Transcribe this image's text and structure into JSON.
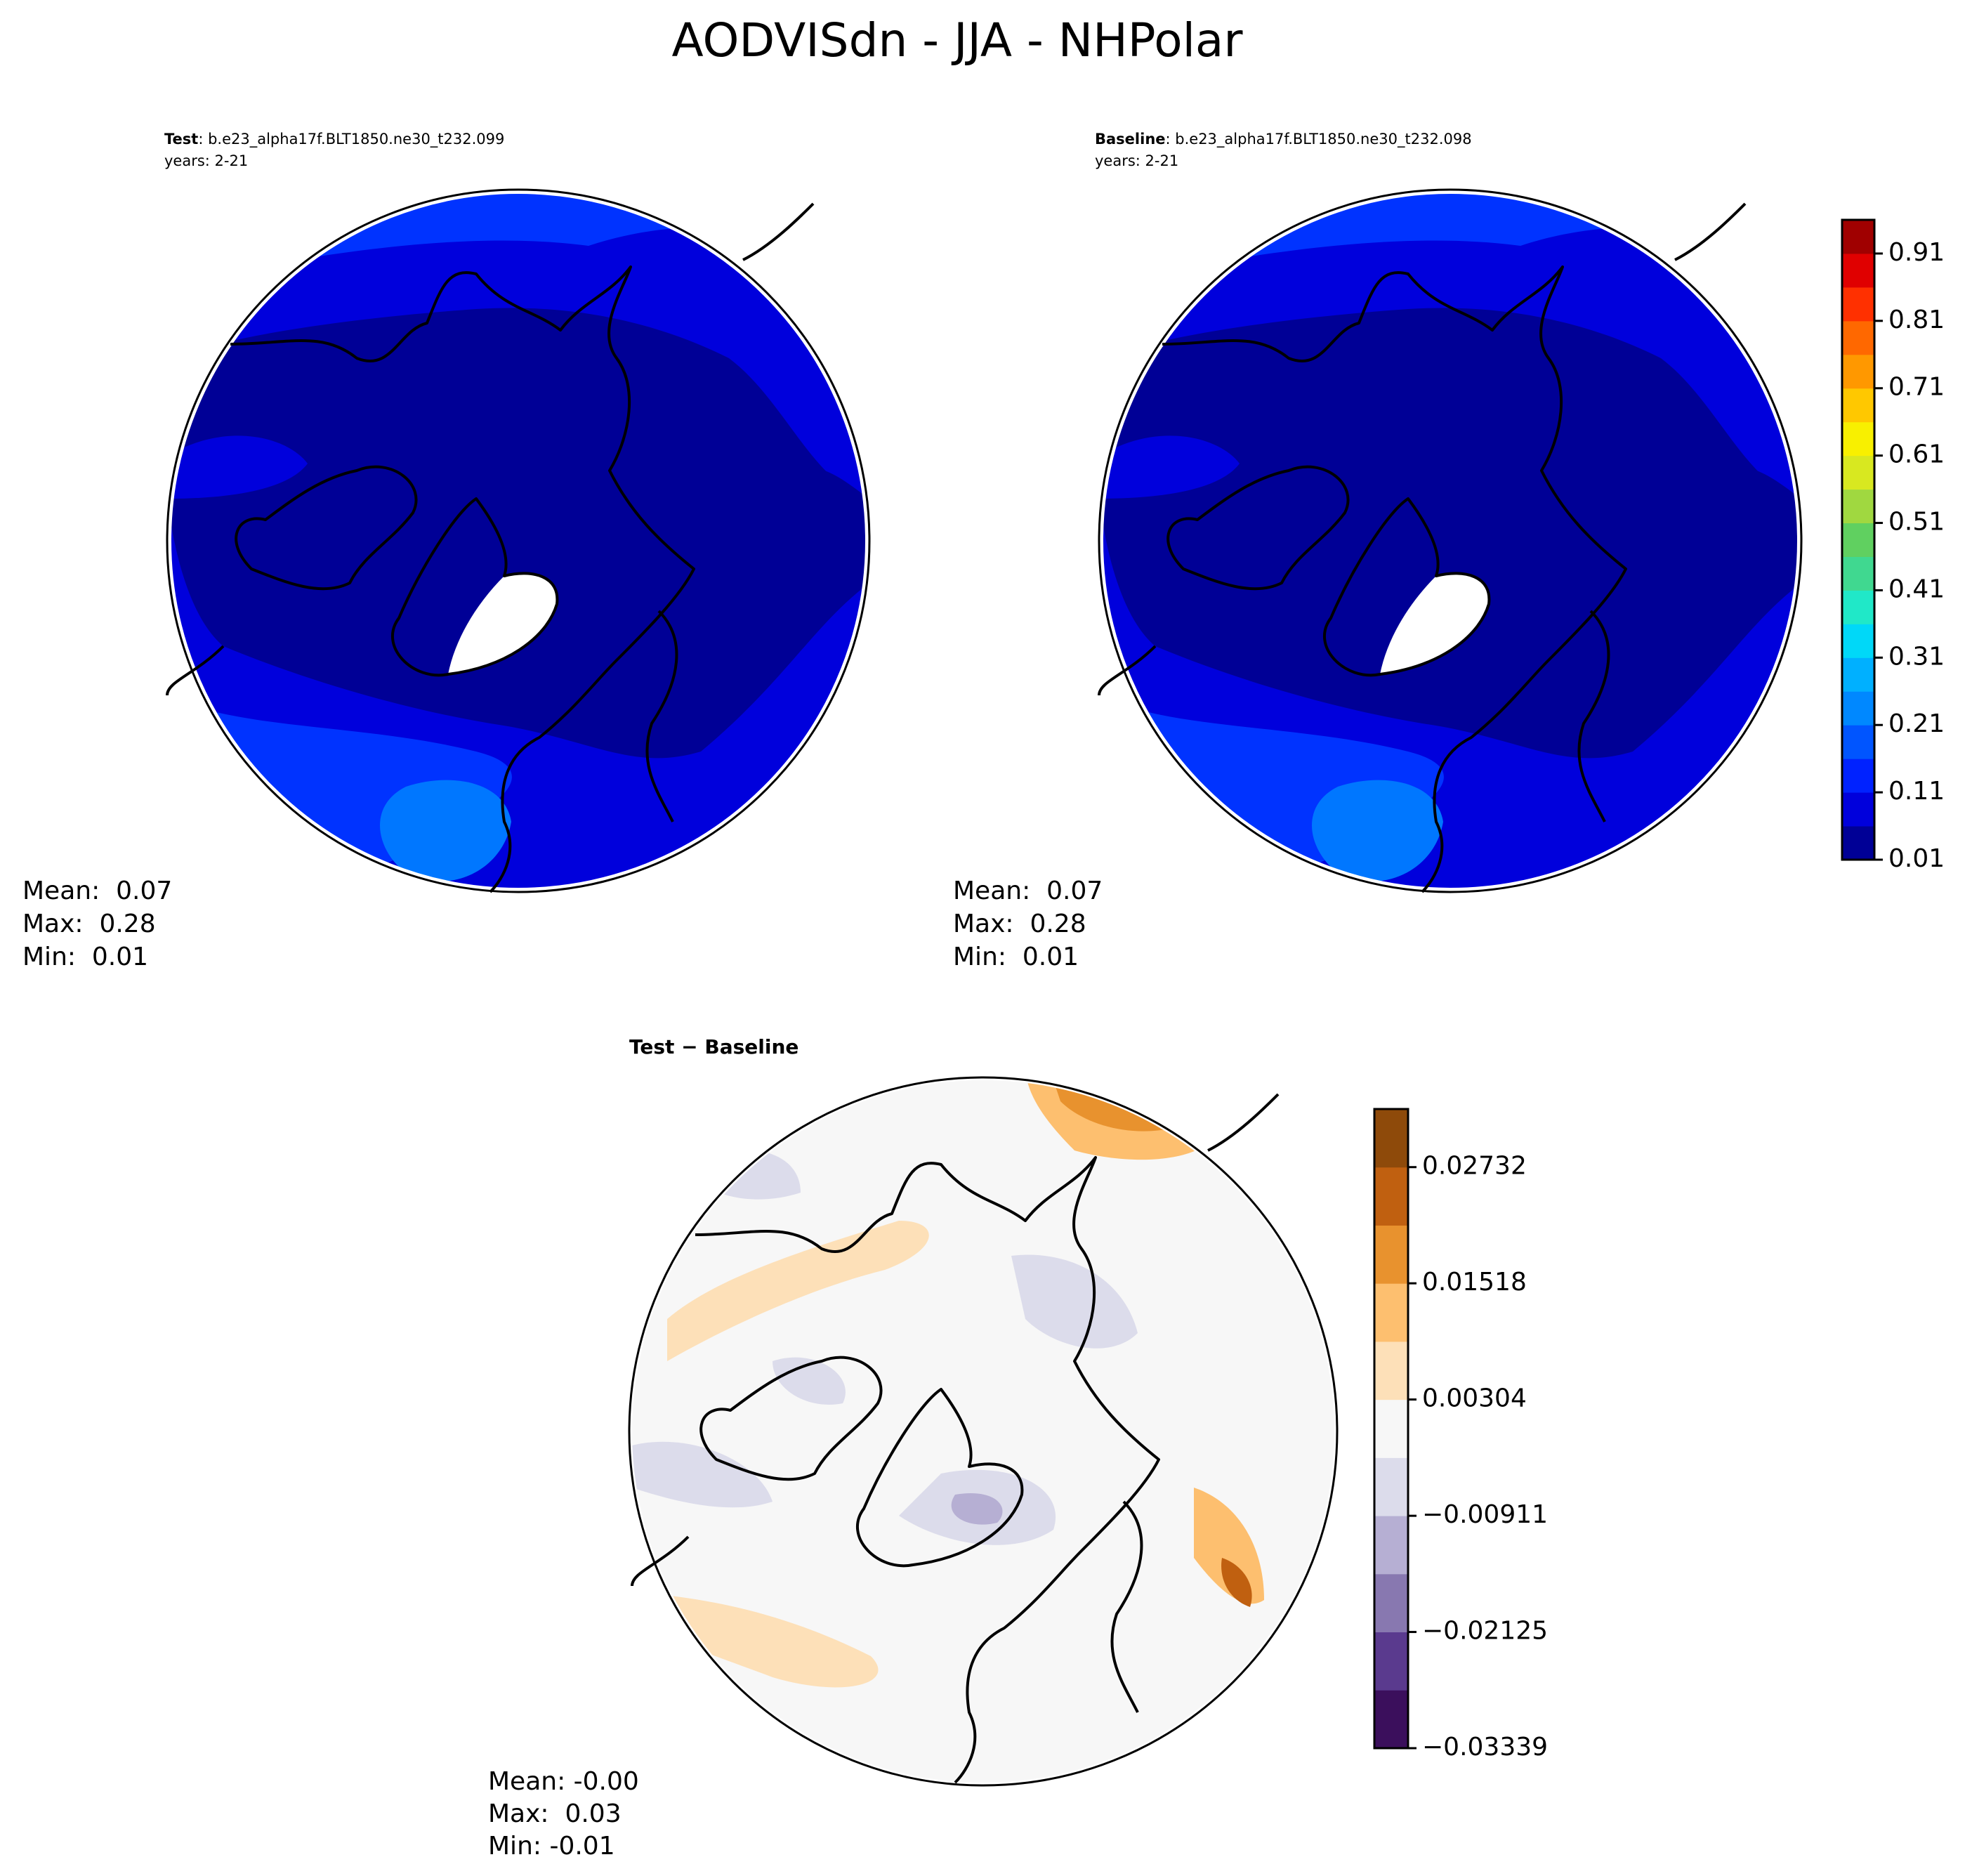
{
  "title": "AODVISdn - JJA - NHPolar",
  "panels": [
    {
      "label": "Test",
      "case": ": b.e23_alpha17f.BLT1850.ne30_t232.099",
      "years": "years: 2-21",
      "stats": [
        "Mean:  0.07",
        "Max:  0.28",
        "Min:  0.01"
      ]
    },
    {
      "label": "Baseline",
      "case": ": b.e23_alpha17f.BLT1850.ne30_t232.098",
      "years": "years: 2-21",
      "stats": [
        "Mean:  0.07",
        "Max:  0.28",
        "Min:  0.01"
      ]
    },
    {
      "label": "Test − Baseline",
      "stats": [
        "Mean: -0.00",
        "Max:  0.03",
        "Min: -0.01"
      ]
    }
  ],
  "colorbars": [
    {
      "lim": [
        0.01,
        0.96
      ],
      "ticks": [
        0.01,
        0.11,
        0.21,
        0.31,
        0.41,
        0.51,
        0.61,
        0.71,
        0.81,
        0.91
      ],
      "colors": [
        "#000096",
        "#0000dc",
        "#0022ff",
        "#0055ff",
        "#0088ff",
        "#00b0ff",
        "#00d8f8",
        "#20e8c8",
        "#40d890",
        "#60d060",
        "#a0d840",
        "#d8e820",
        "#f8f000",
        "#ffc800",
        "#ff9800",
        "#ff6800",
        "#ff3000",
        "#e00000",
        "#a00000"
      ]
    },
    {
      "lim": [
        -0.03339,
        0.03339
      ],
      "ticks": [
        {
          "value": -0.03339,
          "label": "−0.03339"
        },
        {
          "value": -0.02125,
          "label": "−0.02125"
        },
        {
          "value": -0.00911,
          "label": "−0.00911"
        },
        0.00304,
        0.01518,
        0.02732
      ],
      "colors": [
        "#3b0f5c",
        "#5a3a8e",
        "#8878b0",
        "#b6afd3",
        "#dcdceb",
        "#f7f7f7",
        "#fde0b8",
        "#fdbf6f",
        "#e8922e",
        "#c06010",
        "#8e4a0a"
      ]
    }
  ]
}
